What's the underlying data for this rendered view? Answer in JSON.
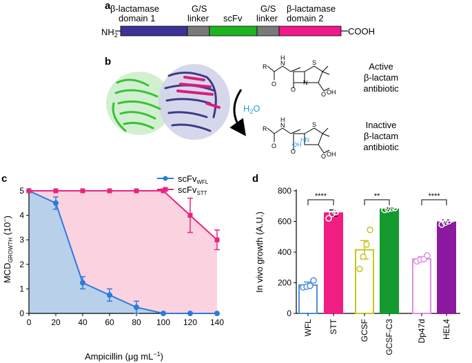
{
  "panel_a": {
    "label": "a",
    "nh2": "NH",
    "nh2_sub": "2",
    "cooh": "COOH",
    "segments": [
      {
        "line1": "β-lactamase",
        "line2": "domain 1",
        "color": "#3b3496"
      },
      {
        "line1": "G/S",
        "line2": "linker",
        "color": "#7a7a7a"
      },
      {
        "line1": "scFv",
        "line2": "",
        "color": "#1fb41f"
      },
      {
        "line1": "G/S",
        "line2": "linker",
        "color": "#7a7a7a"
      },
      {
        "line1": "β-lactamase",
        "line2": "domain 2",
        "color": "#ee1a8a"
      }
    ]
  },
  "panel_b": {
    "label": "b",
    "water": "H",
    "water_sub": "2",
    "water_end": "O",
    "water_color": "#1ea0e0",
    "active_line1": "Active",
    "active_line2": "β-lactam",
    "active_line3": "antibiotic",
    "inactive_line1": "Inactive",
    "inactive_line2": "β-lactam",
    "inactive_line3": "antibiotic",
    "mol_r": "R",
    "mol_o": "O",
    "mol_n": "N",
    "mol_nh": "N",
    "mol_h": "H",
    "mol_s": "S",
    "mol_oh": "OH",
    "mol_hn": "HN",
    "protein_colors": {
      "green": "#37c237",
      "navy": "#3c3a86",
      "magenta": "#d81d7b"
    }
  },
  "panel_c": {
    "label": "c",
    "chart_data": {
      "type": "line",
      "xlabel": "Ampicillin (μg mL",
      "xlabel_sup": "−1",
      "xlabel_end": ")",
      "ylabel": "MCD",
      "ylabel_sub": "GROWTH",
      "ylabel_end": " (10",
      "ylabel_sup": "−",
      "ylabel_close": ")",
      "xlim": [
        0,
        140
      ],
      "ylim": [
        0,
        5
      ],
      "xticks": [
        "0",
        "20",
        "40",
        "60",
        "80",
        "100",
        "120",
        "140"
      ],
      "yticks": [
        "0",
        "1",
        "2",
        "3",
        "4",
        "5"
      ],
      "series": [
        {
          "name": "scFv",
          "name_sub": "WFL",
          "color": "#2b7bdc",
          "fill": "#b9d0ea",
          "x": [
            0,
            20,
            40,
            60,
            80,
            100,
            120,
            140
          ],
          "y": [
            5,
            4.5,
            1.25,
            0.75,
            0.25,
            0,
            0,
            0
          ],
          "err": [
            0,
            0.25,
            0.25,
            0.25,
            0.25,
            0,
            0,
            0
          ]
        },
        {
          "name": "scFv",
          "name_sub": "STT",
          "color": "#e8247e",
          "fill": "#fad2e0",
          "x": [
            0,
            20,
            40,
            60,
            80,
            100,
            120,
            140
          ],
          "y": [
            5,
            5,
            5,
            5,
            5,
            5,
            4,
            3
          ],
          "err": [
            0,
            0,
            0,
            0,
            0,
            0,
            0.7,
            0.4
          ]
        }
      ]
    }
  },
  "panel_d": {
    "label": "d",
    "chart_data": {
      "type": "bar",
      "ylabel": "In vivo growth (A.U.)",
      "ylim": [
        0,
        800
      ],
      "yticks": [
        "0",
        "200",
        "400",
        "600",
        "800"
      ],
      "categories": [
        "WFL",
        "STT",
        "GCSF",
        "GCSF-C3",
        "Dp47d",
        "HEL4"
      ],
      "values": [
        185,
        655,
        415,
        680,
        355,
        595
      ],
      "errors": [
        20,
        20,
        60,
        8,
        15,
        15
      ],
      "colors": [
        "#4a8fdc",
        "#f01e82",
        "#c8c41e",
        "#149a2e",
        "#e08ee6",
        "#8c1aa0"
      ],
      "filled": [
        false,
        true,
        false,
        true,
        false,
        true
      ],
      "points": [
        [
          170,
          175,
          180,
          215
        ],
        [
          620,
          650,
          660,
          680
        ],
        [
          290,
          370,
          450,
          545
        ],
        [
          675,
          680,
          685,
          688
        ],
        [
          340,
          350,
          355,
          378
        ],
        [
          580,
          592,
          600,
          615
        ]
      ],
      "significance": [
        "****",
        "**",
        "****"
      ]
    }
  }
}
